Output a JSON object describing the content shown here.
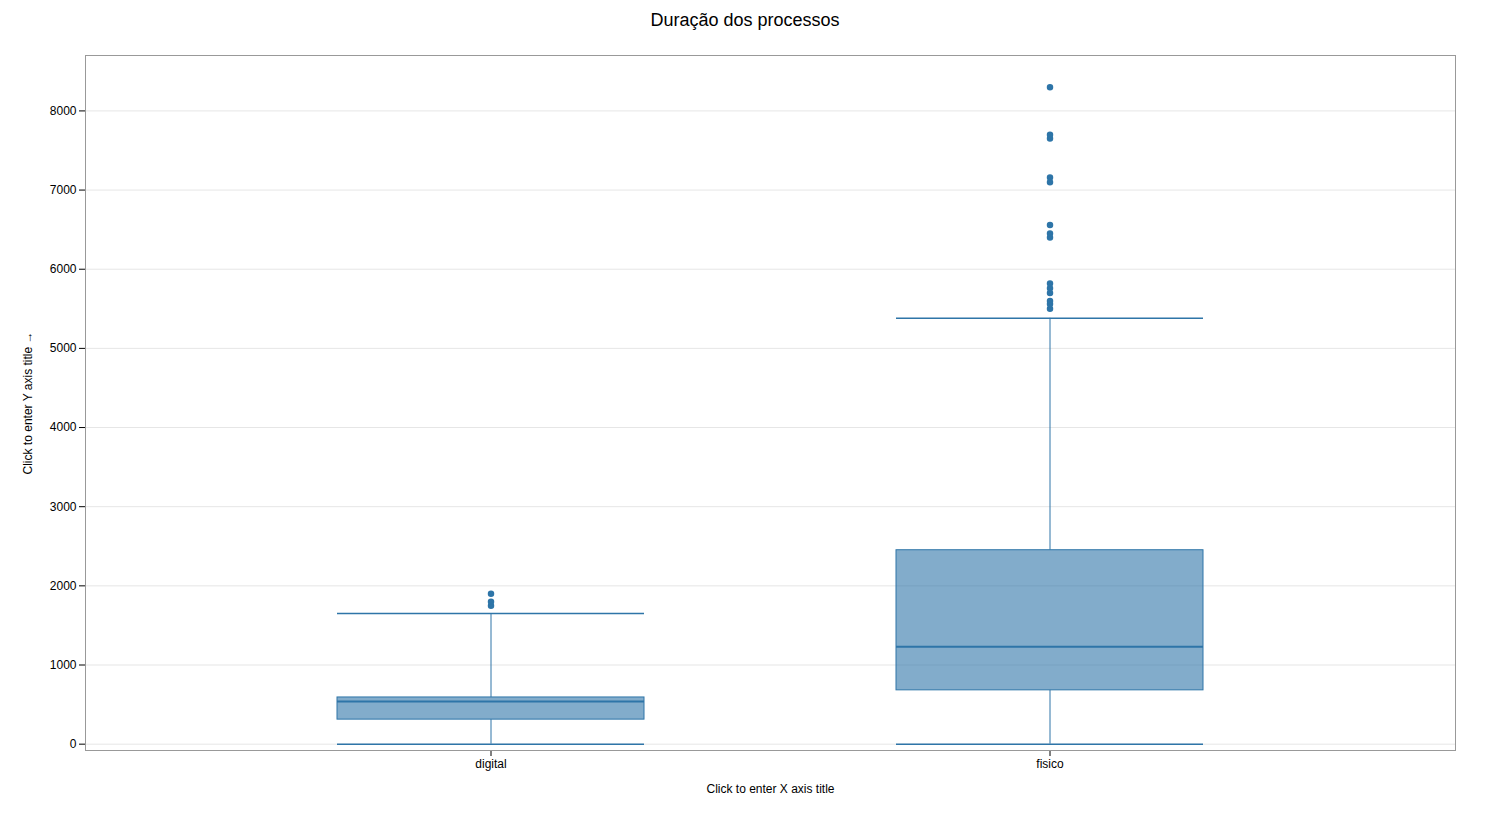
{
  "chart_data": {
    "type": "box",
    "title": "Duração dos processos",
    "xlabel": "Click to enter X axis title",
    "ylabel": "Click to enter Y axis title",
    "categories": [
      "digital",
      "fisico"
    ],
    "whisker_low": [
      0,
      0
    ],
    "q1": [
      310,
      680
    ],
    "median": [
      540,
      1230
    ],
    "q3": [
      590,
      2450
    ],
    "whisker_high": [
      1650,
      5380
    ],
    "outliers": [
      [
        1750,
        1800,
        1900
      ],
      [
        5500,
        5560,
        5600,
        5700,
        5760,
        5820,
        6400,
        6450,
        6560,
        7100,
        7160,
        7650,
        7700,
        8300
      ]
    ],
    "color": "#2e75a8",
    "ylim": [
      -80,
      8700
    ],
    "yticks": [
      0,
      1000,
      2000,
      3000,
      4000,
      5000,
      6000,
      7000,
      8000
    ],
    "grid": true
  }
}
